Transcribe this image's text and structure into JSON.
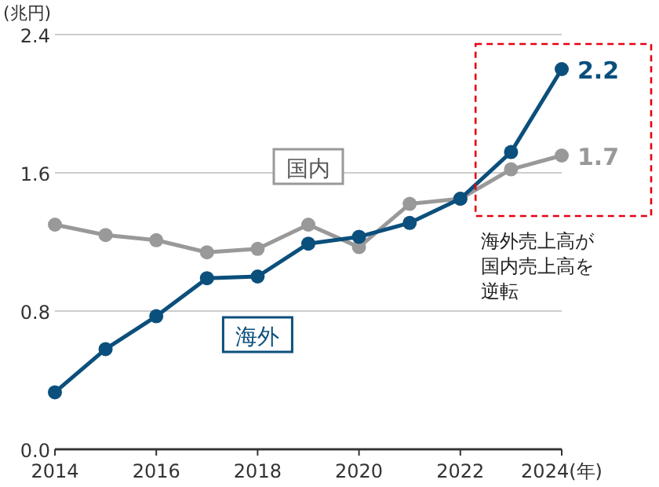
{
  "chart_data": {
    "type": "line",
    "ylabel": "(兆円)",
    "x": [
      2014,
      2015,
      2016,
      2017,
      2018,
      2019,
      2020,
      2021,
      2022,
      2023,
      2024
    ],
    "xlim": [
      2014,
      2024
    ],
    "xticks": [
      2014,
      2016,
      2018,
      2020,
      2022,
      {
        "value": 2024,
        "label": "2024(年)"
      }
    ],
    "ylim": [
      0,
      2.4
    ],
    "yticks": [
      {
        "value": 0,
        "label": "0.0"
      },
      0.8,
      1.6,
      2.4
    ],
    "grid": "y",
    "marker": "circle",
    "line_style": "solid",
    "series": [
      {
        "name": "国内",
        "color": "#999999",
        "values": [
          1.3,
          1.24,
          1.21,
          1.14,
          1.16,
          1.3,
          1.17,
          1.42,
          1.45,
          1.62,
          1.7
        ],
        "value_labels": [
          null,
          null,
          null,
          null,
          null,
          null,
          null,
          null,
          null,
          null,
          "1.7"
        ]
      },
      {
        "name": "海外",
        "color": "#0b4f7c",
        "values": [
          0.33,
          0.58,
          0.77,
          0.99,
          1.0,
          1.19,
          1.23,
          1.31,
          1.45,
          1.72,
          2.2
        ],
        "value_labels": [
          null,
          null,
          null,
          null,
          null,
          null,
          null,
          null,
          null,
          null,
          "2.2"
        ]
      }
    ],
    "annotations": [
      "海外売上高が国内売上高を逆転"
    ]
  }
}
